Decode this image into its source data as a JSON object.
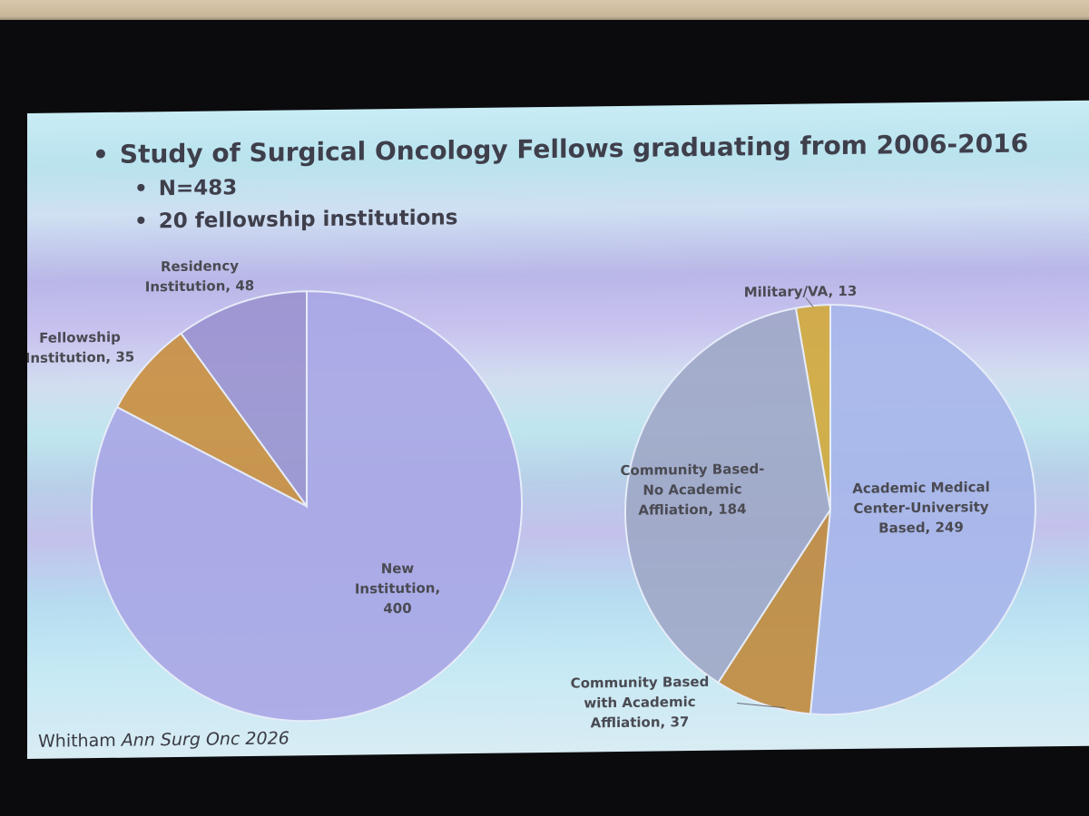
{
  "slide": {
    "bullets": [
      "Study of Surgical Oncology Fellows graduating from 2006-2016",
      "N=483",
      "20 fellowship institutions"
    ],
    "citation_author": "Whitham",
    "citation_journal": "Ann Surg Onc 2026"
  },
  "chart_data": [
    {
      "type": "pie",
      "title": "",
      "slices": [
        {
          "label_lines": [
            "New",
            "Institution,",
            "400"
          ],
          "value": 400,
          "color": "#a9a6e6"
        },
        {
          "label_lines": [
            "Fellowship",
            "Institution, 35"
          ],
          "value": 35,
          "color": "#c98e3e"
        },
        {
          "label_lines": [
            "Residency",
            "Institution, 48"
          ],
          "value": 48,
          "color": "#9a92cf"
        }
      ]
    },
    {
      "type": "pie",
      "title": "",
      "slices": [
        {
          "label_lines": [
            "Academic Medical",
            "Center-University",
            "Based, 249"
          ],
          "value": 249,
          "color": "#a7b6ea"
        },
        {
          "label_lines": [
            "Community Based",
            "with Academic",
            "Affliation, 37"
          ],
          "value": 37,
          "color": "#c08a3c"
        },
        {
          "label_lines": [
            "Community Based-",
            "No Academic",
            "Affliation, 184"
          ],
          "value": 184,
          "color": "#9fa7c6"
        },
        {
          "label_lines": [
            "Military/VA, 13"
          ],
          "value": 13,
          "color": "#d2a83a"
        }
      ]
    }
  ]
}
